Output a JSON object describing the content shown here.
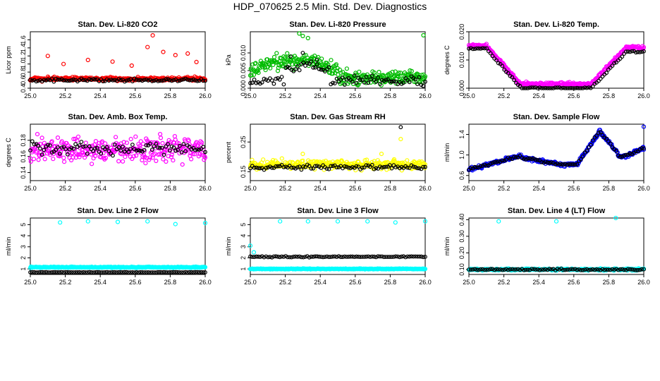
{
  "title": "HDP_070625  2.5 Min. Std. Dev. Diagnostics",
  "colors": {
    "reference": "#000000"
  },
  "chart_data": [
    {
      "type": "scatter",
      "title": "Stan. Dev. Li-820 CO2",
      "ylabel": "Licor ppm",
      "color": "#ff0000",
      "xlim": [
        25.0,
        26.0
      ],
      "ylim": [
        0.4,
        1.8
      ],
      "xticks": [
        25.0,
        25.2,
        25.4,
        25.6,
        25.8,
        26.0
      ],
      "xtick_labels": [
        "25.0",
        "25.2",
        "25.4",
        "25.6",
        "25.8",
        "26.0"
      ],
      "yticks": [
        0.4,
        0.6,
        0.8,
        1.0,
        1.2,
        1.4,
        1.6
      ],
      "ytick_labels": [
        "0.4",
        "0.6",
        "0.8",
        "1.0",
        "1.2",
        "1.4",
        "1.6"
      ],
      "series": [
        {
          "name": "primary",
          "pattern": "noise",
          "base": 0.62,
          "spread": 0.06,
          "extremes": [
            [
              25.1,
              1.2
            ],
            [
              25.19,
              1.0
            ],
            [
              25.33,
              1.1
            ],
            [
              25.47,
              1.06
            ],
            [
              25.58,
              0.96
            ],
            [
              25.67,
              1.42
            ],
            [
              25.7,
              1.71
            ],
            [
              25.76,
              1.3
            ],
            [
              25.83,
              1.22
            ],
            [
              25.9,
              1.26
            ],
            [
              25.95,
              1.05
            ]
          ]
        },
        {
          "name": "reference",
          "pattern": "noise",
          "base": 0.6,
          "spread": 0.05,
          "extremes": []
        }
      ]
    },
    {
      "type": "scatter",
      "title": "Stan. Dev. Li-820 Pressure",
      "ylabel": "kPa",
      "color": "#00bb00",
      "xlim": [
        25.0,
        26.0
      ],
      "ylim": [
        0.0,
        0.016
      ],
      "xticks": [
        25.0,
        25.2,
        25.4,
        25.6,
        25.8,
        26.0
      ],
      "xtick_labels": [
        "25.0",
        "25.2",
        "25.4",
        "25.6",
        "25.8",
        "26.0"
      ],
      "yticks": [
        0.0,
        0.005,
        0.01
      ],
      "ytick_labels": [
        "0.000",
        "0.005",
        "0.010"
      ],
      "series": [
        {
          "name": "primary",
          "pattern": "hump",
          "base": 0.004,
          "spread": 0.003,
          "extremes": [
            [
              25.28,
              0.0155
            ],
            [
              25.3,
              0.0148
            ],
            [
              25.33,
              0.0142
            ],
            [
              25.99,
              0.015
            ]
          ]
        },
        {
          "name": "reference",
          "pattern": "ramp",
          "base": 0.003,
          "spread": 0.002,
          "extremes": [
            [
              25.23,
              0.009
            ],
            [
              25.3,
              0.01
            ],
            [
              25.38,
              0.008
            ]
          ]
        }
      ]
    },
    {
      "type": "scatter",
      "title": "Stan. Dev. Li-820 Temp.",
      "ylabel": "degrees C",
      "color": "#ff00ff",
      "xlim": [
        25.0,
        26.0
      ],
      "ylim": [
        0.0,
        0.02
      ],
      "xticks": [
        25.0,
        25.2,
        25.4,
        25.6,
        25.8,
        26.0
      ],
      "xtick_labels": [
        "25.0",
        "25.2",
        "25.4",
        "25.6",
        "25.8",
        "26.0"
      ],
      "yticks": [
        0.0,
        0.01,
        0.02
      ],
      "ytick_labels": [
        "0.000",
        "0.010",
        "0.020"
      ],
      "series": [
        {
          "name": "primary",
          "pattern": "valley",
          "base": 0.002,
          "spread": 0.001,
          "extremes": []
        },
        {
          "name": "reference",
          "pattern": "valley-ref",
          "base": 0.0,
          "spread": 0.0005,
          "extremes": []
        }
      ]
    },
    {
      "type": "scatter",
      "title": "Stan. Dev. Amb. Box Temp.",
      "ylabel": "degrees C",
      "color": "#ff00ff",
      "xlim": [
        25.0,
        26.0
      ],
      "ylim": [
        0.13,
        0.2
      ],
      "xticks": [
        25.0,
        25.2,
        25.4,
        25.6,
        25.8,
        26.0
      ],
      "xtick_labels": [
        "25.0",
        "25.2",
        "25.4",
        "25.6",
        "25.8",
        "26.0"
      ],
      "yticks": [
        0.14,
        0.16,
        0.18
      ],
      "ytick_labels": [
        "0.14",
        "0.16",
        "0.18"
      ],
      "series": [
        {
          "name": "primary",
          "pattern": "noise",
          "base": 0.165,
          "spread": 0.02,
          "extremes": []
        },
        {
          "name": "reference",
          "pattern": "noise",
          "base": 0.17,
          "spread": 0.012,
          "extremes": []
        }
      ]
    },
    {
      "type": "scatter",
      "title": "Stan. Dev. Gas Stream RH",
      "ylabel": "percent",
      "color": "#ffff00",
      "xlim": [
        25.0,
        26.0
      ],
      "ylim": [
        0.12,
        0.31
      ],
      "xticks": [
        25.0,
        25.2,
        25.4,
        25.6,
        25.8,
        26.0
      ],
      "xtick_labels": [
        "25.0",
        "25.2",
        "25.4",
        "25.6",
        "25.8",
        "26.0"
      ],
      "yticks": [
        0.15,
        0.25
      ],
      "ytick_labels": [
        "0.15",
        "0.25"
      ],
      "series": [
        {
          "name": "primary",
          "pattern": "noise",
          "base": 0.17,
          "spread": 0.02,
          "extremes": [
            [
              25.3,
              0.21
            ],
            [
              25.75,
              0.21
            ],
            [
              25.86,
              0.26
            ]
          ]
        },
        {
          "name": "reference",
          "pattern": "noise",
          "base": 0.165,
          "spread": 0.012,
          "extremes": [
            [
              25.86,
              0.3
            ]
          ]
        }
      ]
    },
    {
      "type": "scatter",
      "title": "Stan. Dev. Sample Flow",
      "ylabel": "ml/min",
      "color": "#0000ff",
      "xlim": [
        25.0,
        26.0
      ],
      "ylim": [
        0.5,
        1.6
      ],
      "xticks": [
        25.0,
        25.2,
        25.4,
        25.6,
        25.8,
        26.0
      ],
      "xtick_labels": [
        "25.0",
        "25.2",
        "25.4",
        "25.6",
        "25.8",
        "26.0"
      ],
      "yticks": [
        0.6,
        1.0,
        1.4
      ],
      "ytick_labels": [
        "0.6",
        "1.0",
        "1.4"
      ],
      "series": [
        {
          "name": "primary",
          "pattern": "flowcurve",
          "base": 0.0,
          "spread": 0.05,
          "extremes": [
            [
              26.0,
              1.55
            ]
          ]
        },
        {
          "name": "reference",
          "pattern": "flowcurve",
          "base": 0.0,
          "spread": 0.03,
          "extremes": []
        }
      ]
    },
    {
      "type": "scatter",
      "title": "Stan. Dev. Line 2 Flow",
      "ylabel": "ml/min",
      "color": "#00ffff",
      "xlim": [
        25.0,
        26.0
      ],
      "ylim": [
        0.5,
        5.6
      ],
      "xticks": [
        25.0,
        25.2,
        25.4,
        25.6,
        25.8,
        26.0
      ],
      "xtick_labels": [
        "25.0",
        "25.2",
        "25.4",
        "25.6",
        "25.8",
        "26.0"
      ],
      "yticks": [
        1,
        2,
        3,
        4,
        5
      ],
      "ytick_labels": [
        "1",
        "2",
        "3",
        "4",
        "5"
      ],
      "series": [
        {
          "name": "primary",
          "pattern": "flat",
          "base": 1.15,
          "spread": 0.06,
          "extremes": [
            [
              25.17,
              5.2
            ],
            [
              25.33,
              5.3
            ],
            [
              25.5,
              5.25
            ],
            [
              25.67,
              5.3
            ],
            [
              25.83,
              5.05
            ],
            [
              26.0,
              5.15
            ]
          ]
        },
        {
          "name": "reference",
          "pattern": "flat",
          "base": 0.7,
          "spread": 0.03,
          "extremes": []
        }
      ]
    },
    {
      "type": "scatter",
      "title": "Stan. Dev. Line 3 Flow",
      "ylabel": "ml/min",
      "color": "#00ffff",
      "xlim": [
        25.0,
        26.0
      ],
      "ylim": [
        0.5,
        5.6
      ],
      "xticks": [
        25.0,
        25.2,
        25.4,
        25.6,
        25.8,
        26.0
      ],
      "xtick_labels": [
        "25.0",
        "25.2",
        "25.4",
        "25.6",
        "25.8",
        "26.0"
      ],
      "yticks": [
        1,
        2,
        3,
        4,
        5
      ],
      "ytick_labels": [
        "1",
        "2",
        "3",
        "4",
        "5"
      ],
      "series": [
        {
          "name": "primary",
          "pattern": "flat",
          "base": 1.0,
          "spread": 0.05,
          "extremes": [
            [
              25.0,
              3.1
            ],
            [
              25.02,
              2.5
            ],
            [
              25.17,
              5.3
            ],
            [
              25.33,
              5.3
            ],
            [
              25.5,
              5.3
            ],
            [
              25.67,
              5.3
            ],
            [
              25.83,
              5.2
            ],
            [
              26.0,
              5.3
            ]
          ]
        },
        {
          "name": "reference",
          "pattern": "flat",
          "base": 2.1,
          "spread": 0.07,
          "extremes": []
        }
      ]
    },
    {
      "type": "scatter",
      "title": "Stan. Dev. Line 4 (LT) Flow",
      "ylabel": "ml/min",
      "color": "#00ffff",
      "xlim": [
        25.0,
        26.0
      ],
      "ylim": [
        0.07,
        0.41
      ],
      "xticks": [
        25.0,
        25.2,
        25.4,
        25.6,
        25.8,
        26.0
      ],
      "xtick_labels": [
        "25.0",
        "25.2",
        "25.4",
        "25.6",
        "25.8",
        "26.0"
      ],
      "yticks": [
        0.1,
        0.2,
        0.3,
        0.4
      ],
      "ytick_labels": [
        "0.10",
        "0.20",
        "0.30",
        "0.40"
      ],
      "series": [
        {
          "name": "primary",
          "pattern": "flat",
          "base": 0.1,
          "spread": 0.008,
          "extremes": [
            [
              25.17,
              0.39
            ],
            [
              25.5,
              0.39
            ],
            [
              25.84,
              0.41
            ]
          ]
        },
        {
          "name": "reference",
          "pattern": "flat",
          "base": 0.1,
          "spread": 0.006,
          "extremes": []
        }
      ]
    }
  ]
}
